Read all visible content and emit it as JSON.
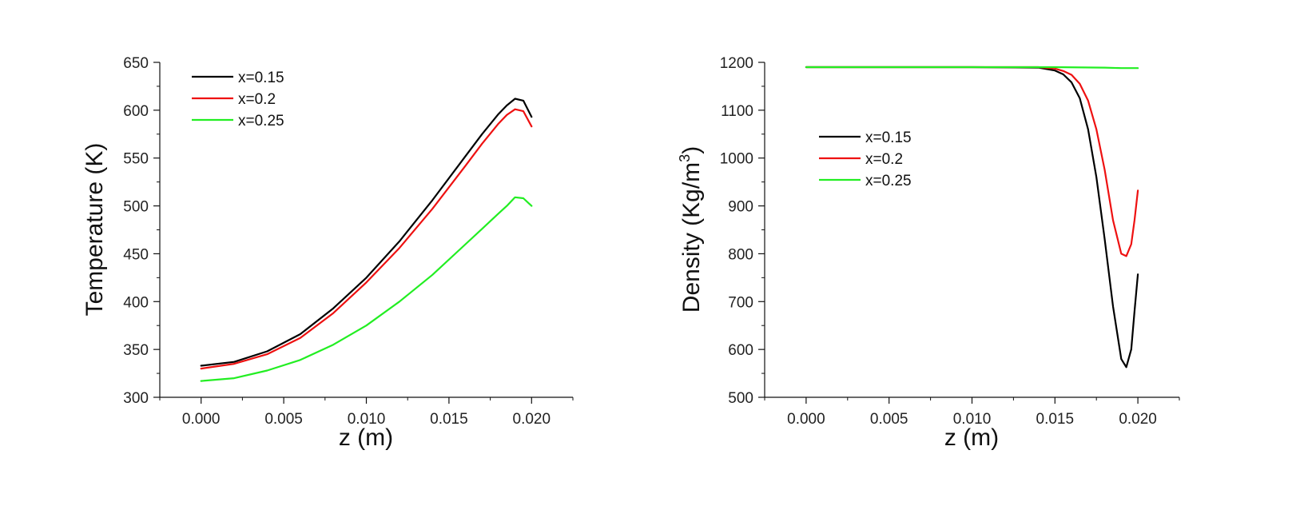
{
  "chart_data": [
    {
      "type": "line",
      "xlabel": "z (m)",
      "ylabel": "Temperature (K)",
      "xlim": [
        -0.0025,
        0.0225
      ],
      "ylim": [
        300,
        650
      ],
      "xticks": [
        0.0,
        0.005,
        0.01,
        0.015,
        0.02
      ],
      "xtick_labels": [
        "0.000",
        "0.005",
        "0.010",
        "0.015",
        "0.020"
      ],
      "yticks": [
        300,
        350,
        400,
        450,
        500,
        550,
        600,
        650
      ],
      "ytick_labels": [
        "300",
        "350",
        "400",
        "450",
        "500",
        "550",
        "600",
        "650"
      ],
      "legend_position": "top-left",
      "series": [
        {
          "name": "x=0.15",
          "color": "#000000",
          "x": [
            0,
            0.002,
            0.004,
            0.006,
            0.008,
            0.01,
            0.012,
            0.014,
            0.016,
            0.017,
            0.018,
            0.0185,
            0.019,
            0.0195,
            0.02
          ],
          "y": [
            333,
            337,
            348,
            366,
            393,
            425,
            463,
            506,
            552,
            575,
            596,
            605,
            612,
            610,
            593
          ]
        },
        {
          "name": "x=0.2",
          "color": "#ee1111",
          "x": [
            0,
            0.002,
            0.004,
            0.006,
            0.008,
            0.01,
            0.012,
            0.014,
            0.016,
            0.017,
            0.018,
            0.0185,
            0.019,
            0.0195,
            0.02
          ],
          "y": [
            330,
            335,
            345,
            362,
            388,
            420,
            456,
            497,
            542,
            565,
            586,
            595,
            601,
            599,
            583
          ]
        },
        {
          "name": "x=0.25",
          "color": "#22ee22",
          "x": [
            0,
            0.002,
            0.004,
            0.006,
            0.008,
            0.01,
            0.012,
            0.014,
            0.016,
            0.017,
            0.018,
            0.0185,
            0.019,
            0.0195,
            0.02
          ],
          "y": [
            317,
            320,
            328,
            339,
            355,
            375,
            400,
            428,
            460,
            476,
            492,
            500,
            509,
            508,
            500
          ]
        }
      ]
    },
    {
      "type": "line",
      "xlabel": "z (m)",
      "ylabel": "Density (Kg/m",
      "ylabel_sup": "3",
      "ylabel_close": ")",
      "xlim": [
        -0.0025,
        0.0225
      ],
      "ylim": [
        500,
        1200
      ],
      "xticks": [
        0.0,
        0.005,
        0.01,
        0.015,
        0.02
      ],
      "xtick_labels": [
        "0.000",
        "0.005",
        "0.010",
        "0.015",
        "0.020"
      ],
      "yticks": [
        500,
        600,
        700,
        800,
        900,
        1000,
        1100,
        1200
      ],
      "ytick_labels": [
        "500",
        "600",
        "700",
        "800",
        "900",
        "1000",
        "1100",
        "1200"
      ],
      "legend_position": "center-left",
      "series": [
        {
          "name": "x=0.15",
          "color": "#000000",
          "x": [
            0,
            0.01,
            0.014,
            0.015,
            0.0155,
            0.016,
            0.0165,
            0.017,
            0.0175,
            0.018,
            0.0185,
            0.019,
            0.0193,
            0.0196,
            0.0198,
            0.02
          ],
          "y": [
            1190,
            1190,
            1189,
            1183,
            1175,
            1158,
            1125,
            1060,
            960,
            830,
            690,
            580,
            563,
            600,
            680,
            757
          ]
        },
        {
          "name": "x=0.2",
          "color": "#ee1111",
          "x": [
            0,
            0.01,
            0.014,
            0.015,
            0.0155,
            0.016,
            0.0165,
            0.017,
            0.0175,
            0.018,
            0.0185,
            0.019,
            0.0193,
            0.0196,
            0.0198,
            0.02
          ],
          "y": [
            1190,
            1190,
            1190,
            1187,
            1182,
            1174,
            1155,
            1120,
            1060,
            975,
            870,
            800,
            795,
            820,
            870,
            932
          ]
        },
        {
          "name": "x=0.25",
          "color": "#22ee22",
          "x": [
            0,
            0.01,
            0.015,
            0.018,
            0.019,
            0.02
          ],
          "y": [
            1190,
            1190,
            1190,
            1189,
            1188,
            1188
          ]
        }
      ]
    }
  ]
}
